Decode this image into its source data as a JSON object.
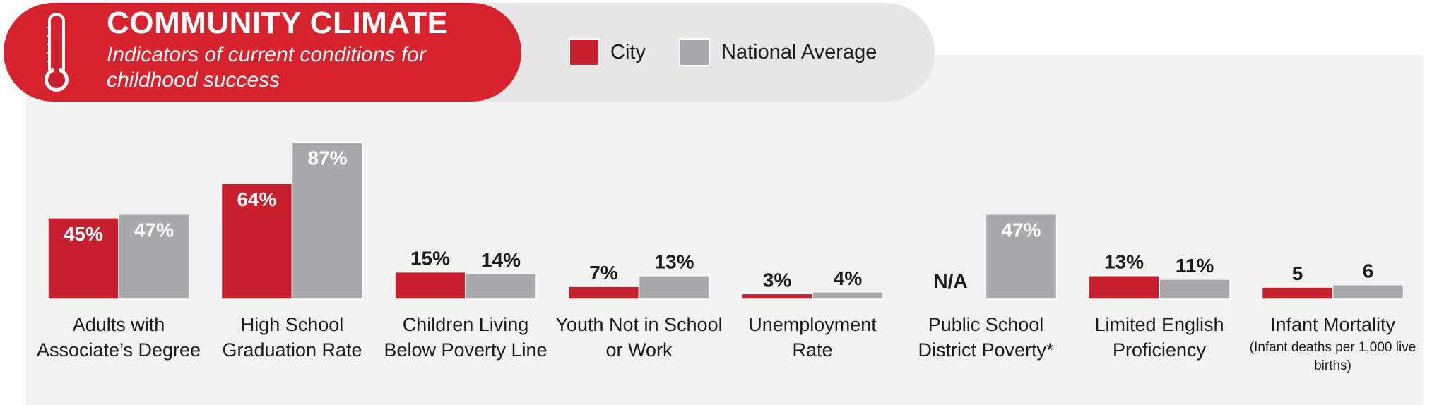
{
  "header": {
    "title": "COMMUNITY CLIMATE",
    "subtitle": "Indicators of current conditions for childhood success",
    "icon": "thermometer-icon"
  },
  "legend": [
    {
      "label": "City",
      "color": "#c8202f"
    },
    {
      "label": "National Average",
      "color": "#a7a9ac"
    }
  ],
  "chart_data": {
    "type": "bar",
    "categories": [
      "Adults with Associate’s Degree",
      "High School Graduation Rate",
      "Children Living Below Poverty Line",
      "Youth Not in School or Work",
      "Unemployment Rate",
      "Public School District Poverty*",
      "Limited English Proficiency",
      "Infant Mortality"
    ],
    "category_notes": [
      "",
      "",
      "",
      "",
      "",
      "",
      "",
      "(Infant deaths per 1,000 live births)"
    ],
    "series": [
      {
        "name": "City",
        "color": "#c8202f",
        "values": [
          45,
          64,
          15,
          7,
          3,
          null,
          13,
          5
        ],
        "labels": [
          "45%",
          "64%",
          "15%",
          "7%",
          "3%",
          "N/A",
          "13%",
          "5"
        ]
      },
      {
        "name": "National Average",
        "color": "#a7a9ac",
        "values": [
          47,
          87,
          14,
          13,
          4,
          47,
          11,
          6
        ],
        "labels": [
          "47%",
          "87%",
          "14%",
          "13%",
          "4%",
          "47%",
          "11%",
          "6"
        ]
      }
    ],
    "grid": false,
    "legend_position": "top"
  }
}
